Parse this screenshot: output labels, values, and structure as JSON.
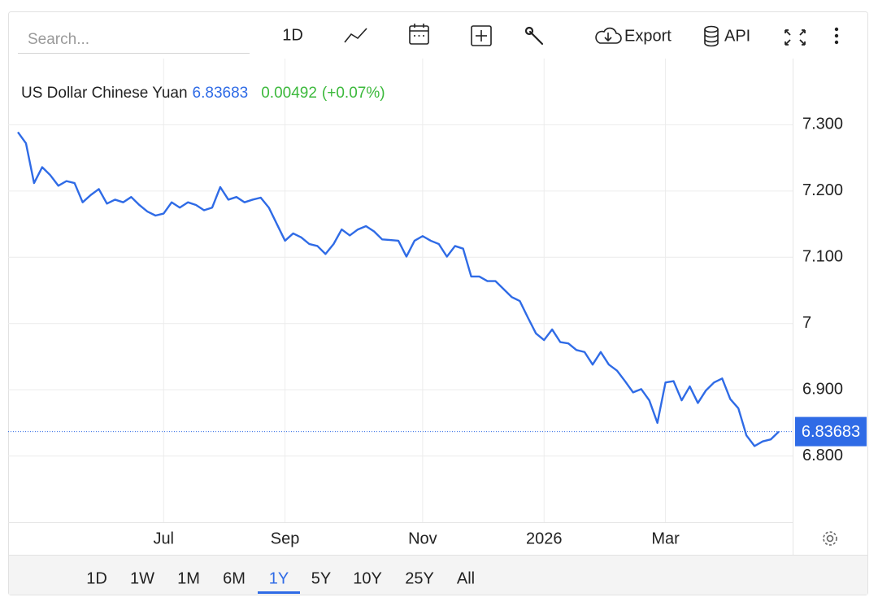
{
  "toolbar": {
    "search_placeholder": "Search...",
    "interval": "1D",
    "export": "Export",
    "api": "API"
  },
  "range_buttons": [
    {
      "label": "1D"
    },
    {
      "label": "1W"
    },
    {
      "label": "1M"
    },
    {
      "label": "6M"
    },
    {
      "label": "1Y",
      "active": true
    },
    {
      "label": "5Y"
    },
    {
      "label": "10Y"
    },
    {
      "label": "25Y"
    },
    {
      "label": "All"
    }
  ],
  "chart_data": {
    "type": "line",
    "title": "US Dollar Chinese Yuan",
    "change": 0.00492,
    "change_percent_label": "(+0.07%)",
    "color": "#2f6be6",
    "grid": true,
    "categories": [
      null,
      null,
      null,
      null,
      null,
      null,
      null,
      null,
      null,
      null,
      null,
      null,
      null,
      null,
      null,
      null,
      null,
      null,
      "Jul",
      null,
      null,
      null,
      null,
      null,
      null,
      null,
      null,
      null,
      null,
      null,
      null,
      null,
      null,
      "Sep",
      null,
      null,
      null,
      null,
      null,
      null,
      null,
      null,
      null,
      null,
      null,
      null,
      null,
      null,
      null,
      null,
      "Nov",
      null,
      null,
      null,
      null,
      null,
      null,
      null,
      null,
      null,
      null,
      null,
      null,
      null,
      null,
      "2026",
      null,
      null,
      null,
      null,
      null,
      null,
      null,
      null,
      null,
      null,
      null,
      null,
      null,
      null,
      "Mar",
      null,
      null,
      null,
      null,
      null,
      null,
      null,
      null,
      null,
      null,
      null,
      null,
      null,
      null
    ],
    "values": [
      7.289,
      7.272,
      7.212,
      7.236,
      7.224,
      7.208,
      7.215,
      7.212,
      7.183,
      7.194,
      7.203,
      7.181,
      7.187,
      7.183,
      7.191,
      7.179,
      7.169,
      7.163,
      7.166,
      7.183,
      7.175,
      7.183,
      7.179,
      7.171,
      7.175,
      7.206,
      7.187,
      7.191,
      7.183,
      7.187,
      7.19,
      7.175,
      7.15,
      7.125,
      7.136,
      7.13,
      7.12,
      7.117,
      7.105,
      7.12,
      7.142,
      7.133,
      7.142,
      7.147,
      7.139,
      7.127,
      7.126,
      7.125,
      7.101,
      7.125,
      7.132,
      7.125,
      7.12,
      7.101,
      7.117,
      7.113,
      7.071,
      7.071,
      7.064,
      7.064,
      7.052,
      7.04,
      7.034,
      7.009,
      6.985,
      6.975,
      6.991,
      6.972,
      6.97,
      6.96,
      6.957,
      6.938,
      6.957,
      6.938,
      6.929,
      6.913,
      6.896,
      6.901,
      6.884,
      6.85,
      6.911,
      6.913,
      6.884,
      6.905,
      6.88,
      6.899,
      6.911,
      6.917,
      6.886,
      6.872,
      6.831,
      6.815,
      6.822,
      6.825,
      6.83683
    ],
    "ylim": [
      6.7,
      7.4
    ],
    "yticks": [
      {
        "value": 6.8,
        "label": "6.800"
      },
      {
        "value": 6.9,
        "label": "6.900"
      },
      7,
      {
        "value": 7.1,
        "label": "7.100"
      },
      {
        "value": 7.2,
        "label": "7.200"
      },
      {
        "value": 7.3,
        "label": "7.300"
      }
    ]
  }
}
